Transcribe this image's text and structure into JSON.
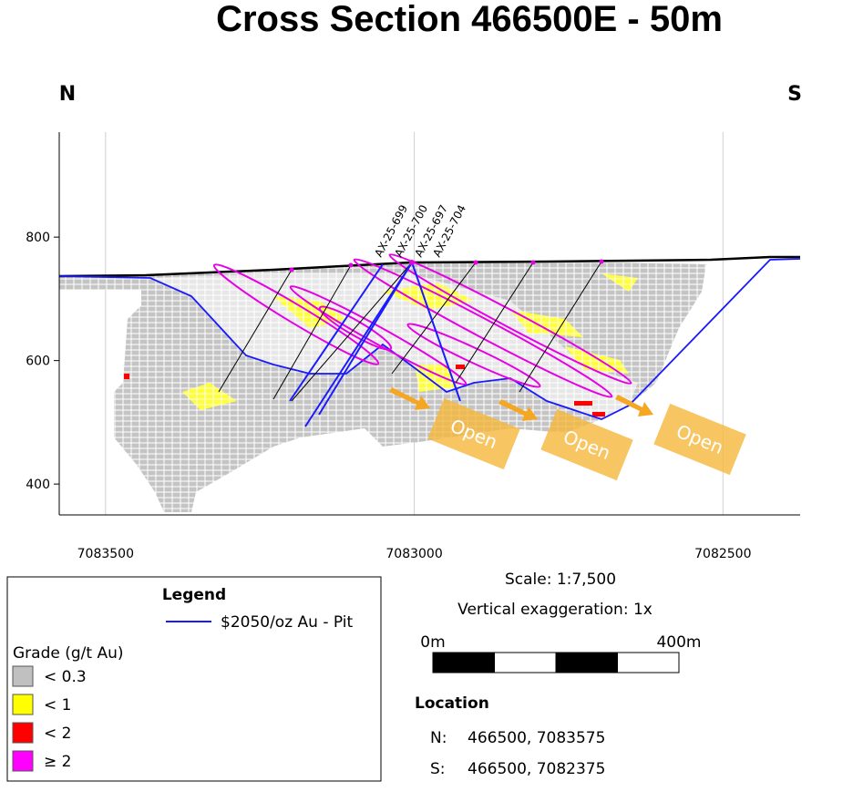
{
  "title": "Cross Section 466500E - 50m",
  "directions": {
    "left": "N",
    "right": "S"
  },
  "axes": {
    "xlim": [
      7083575,
      7082375
    ],
    "xticks": [
      7083500,
      7083000,
      7082500
    ],
    "ylim": [
      350,
      970
    ],
    "yticks": [
      400,
      600,
      800
    ]
  },
  "drill_holes": [
    "AX-25-699",
    "AX-25-700",
    "AX-25-697",
    "AX-25-704"
  ],
  "open_labels": [
    "Open",
    "Open",
    "Open"
  ],
  "legend": {
    "title": "Legend",
    "pit": "$2050/oz Au - Pit",
    "grade_title": "Grade (g/t Au)",
    "grades": [
      {
        "label": "< 0.3",
        "color": "#c0c0c0"
      },
      {
        "label": "< 1",
        "color": "#ffff00"
      },
      {
        "label": "< 2",
        "color": "#ff0000"
      },
      {
        "label": "≥ 2",
        "color": "#ff00ff"
      }
    ]
  },
  "scale": {
    "text": "Scale: 1:7,500",
    "exaggeration": "Vertical exaggeration: 1x",
    "start": "0m",
    "end": "400m"
  },
  "location": {
    "title": "Location",
    "rows": [
      [
        "N:",
        "466500, 7083575"
      ],
      [
        "S:",
        "466500, 7082375"
      ]
    ]
  }
}
